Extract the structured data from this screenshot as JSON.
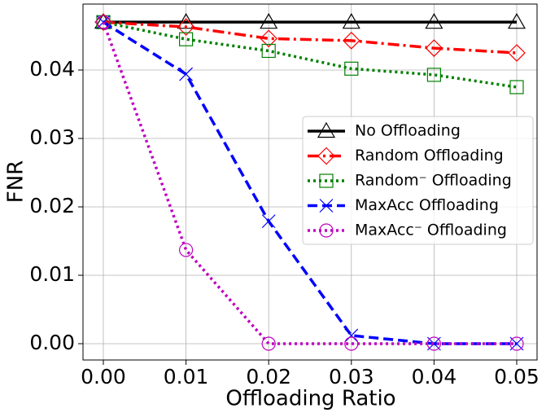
{
  "chart_data": {
    "type": "line",
    "xlabel": "Offloading Ratio",
    "ylabel": "FNR",
    "x": [
      0,
      0.01,
      0.02,
      0.03,
      0.04,
      0.05
    ],
    "series": [
      {
        "name": "No Offloading",
        "color": "#000000",
        "linestyle": "solid",
        "marker": "triangle",
        "values": [
          0.047,
          0.047,
          0.047,
          0.047,
          0.047,
          0.047
        ]
      },
      {
        "name": "Random Offloading",
        "color": "#ff0000",
        "linestyle": "dashdot",
        "marker": "diamond",
        "values": [
          0.047,
          0.0463,
          0.0446,
          0.0443,
          0.0432,
          0.0425
        ]
      },
      {
        "name": "Random⁻ Offloading",
        "color": "#008000",
        "linestyle": "dotted",
        "marker": "square",
        "values": [
          0.047,
          0.0445,
          0.0428,
          0.0402,
          0.0393,
          0.0375
        ]
      },
      {
        "name": "MaxAcc Offloading",
        "color": "#0000ff",
        "linestyle": "dashed",
        "marker": "x",
        "values": [
          0.047,
          0.0394,
          0.0179,
          0.0012,
          0,
          0
        ]
      },
      {
        "name": "MaxAcc⁻ Offloading",
        "color": "#bf00bf",
        "linestyle": "dotted",
        "marker": "circle",
        "values": [
          0.047,
          0.0137,
          0,
          0,
          0,
          0
        ]
      }
    ],
    "xlim": [
      -0.00246,
      0.05246
    ],
    "ylim": [
      -0.00238,
      0.04964
    ],
    "xticks": [
      {
        "value": 0,
        "label": "0.00"
      },
      {
        "value": 0.01,
        "label": "0.01"
      },
      {
        "value": 0.02,
        "label": "0.02"
      },
      {
        "value": 0.03,
        "label": "0.03"
      },
      {
        "value": 0.04,
        "label": "0.04"
      },
      {
        "value": 0.05,
        "label": "0.05"
      }
    ],
    "yticks": [
      {
        "value": 0,
        "label": "0.00"
      },
      {
        "value": 0.01,
        "label": "0.01"
      },
      {
        "value": 0.02,
        "label": "0.02"
      },
      {
        "value": 0.03,
        "label": "0.03"
      },
      {
        "value": 0.04,
        "label": "0.04"
      }
    ],
    "grid": true,
    "legend": "center right"
  }
}
